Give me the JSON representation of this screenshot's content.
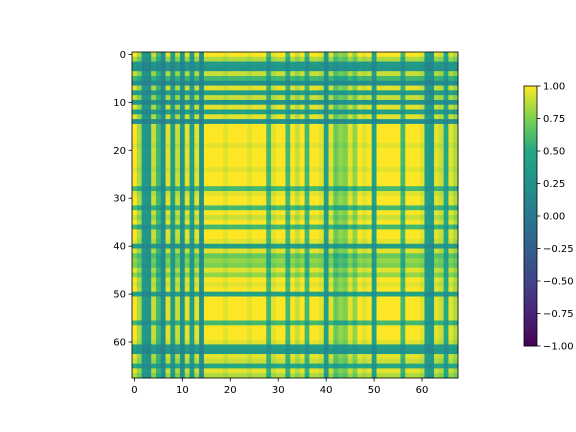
{
  "chart_data": {
    "type": "heatmap",
    "size": 68,
    "xticks": [
      0,
      10,
      20,
      30,
      40,
      50,
      60
    ],
    "yticks": [
      0,
      10,
      20,
      30,
      40,
      50,
      60
    ],
    "xlim": [
      -0.5,
      67.5
    ],
    "ylim": [
      67.5,
      -0.5
    ],
    "colormap": "viridis",
    "colorbar": {
      "vmin": -1.0,
      "vmax": 1.0,
      "ticks": [
        1.0,
        0.75,
        0.5,
        0.25,
        0.0,
        -0.25,
        -0.5,
        -0.75,
        -1.0
      ],
      "tick_labels": [
        "1.00",
        "0.75",
        "0.50",
        "0.25",
        "0.00",
        "−0.25",
        "−0.50",
        "−0.75",
        "−1.00"
      ]
    },
    "note_values": "68x68 correlation matrix; each cell = feature_i * feature_j, features listed below (estimated from image)",
    "features": [
      1,
      0.85,
      0.35,
      0.3,
      0.9,
      0.6,
      0.25,
      0.95,
      0.4,
      0.9,
      0.3,
      0.95,
      0.4,
      0.95,
      0.25,
      1,
      1,
      1,
      1,
      0.95,
      1,
      1,
      1,
      1,
      0.95,
      1,
      1,
      1,
      0.6,
      0.95,
      1,
      1,
      0.6,
      1,
      0.9,
      1,
      0.6,
      1,
      1,
      0.95,
      0.4,
      0.95,
      0.7,
      0.8,
      0.75,
      0.95,
      0.8,
      1,
      0.95,
      1,
      0.45,
      1,
      1,
      1,
      1,
      1,
      0.6,
      1,
      1,
      1,
      0.95,
      0.4,
      0.35,
      0.95,
      0.9,
      0.5,
      0.95,
      0.85
    ]
  }
}
